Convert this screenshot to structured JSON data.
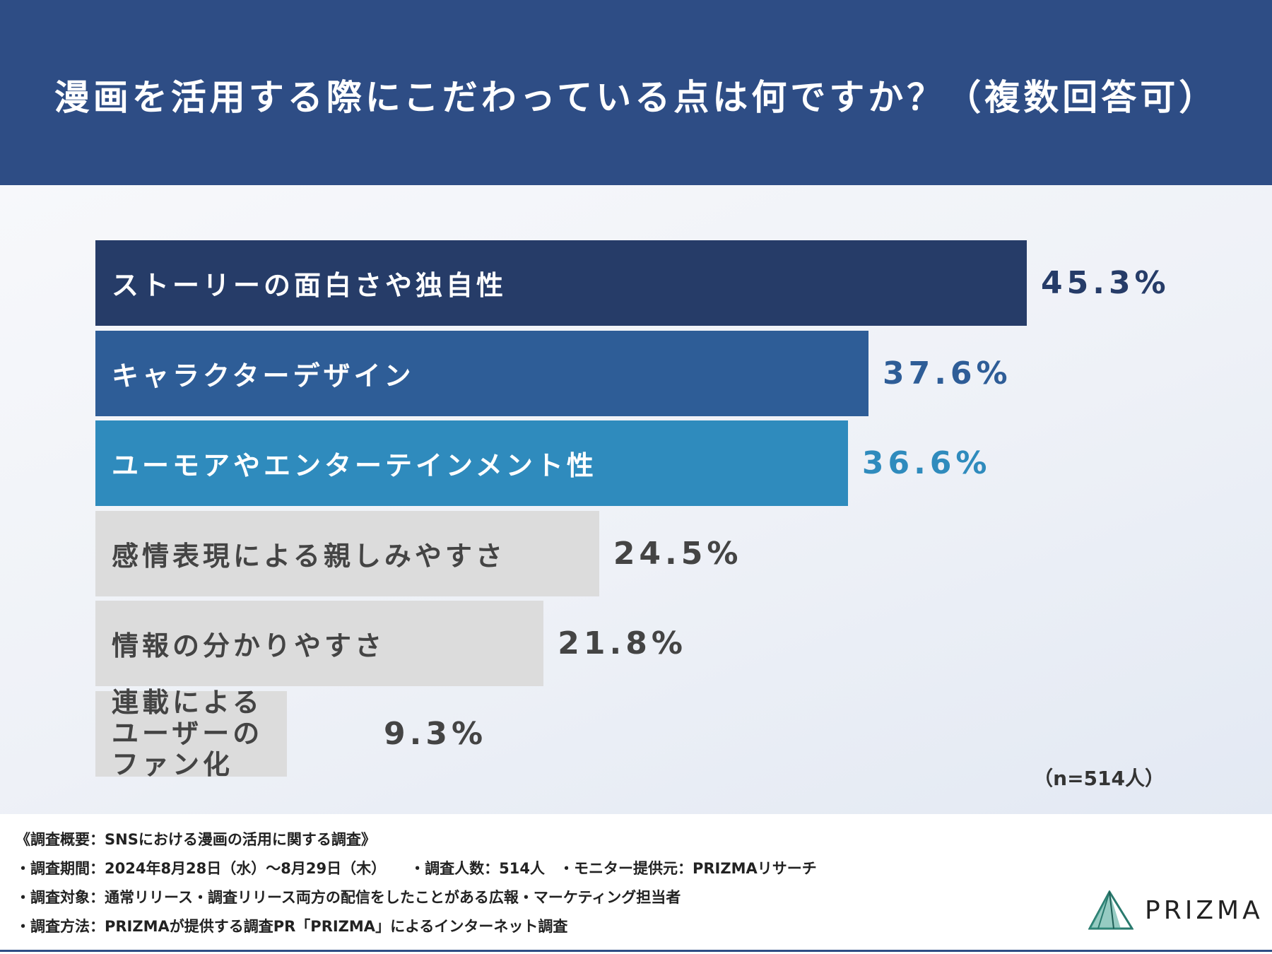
{
  "header": {
    "title": "漫画を活用する際にこだわっている点は何ですか？（複数回答可）"
  },
  "chart_data": {
    "type": "bar",
    "orientation": "horizontal",
    "categories": [
      "ストーリーの面白さや独自性",
      "キャラクターデザイン",
      "ユーモアやエンターテインメント性",
      "感情表現による親しみやすさ",
      "情報の分かりやすさ",
      "連載による\nユーザーのファン化"
    ],
    "values": [
      45.3,
      37.6,
      36.6,
      24.5,
      21.8,
      9.3
    ],
    "value_labels": [
      "45.3%",
      "37.6%",
      "36.6%",
      "24.5%",
      "21.8%",
      "9.3%"
    ],
    "bar_colors": [
      "#263c68",
      "#2e5d97",
      "#2f8bbd",
      "#dcdcdc",
      "#dcdcdc",
      "#dcdcdc"
    ],
    "label_colors": [
      "#ffffff",
      "#ffffff",
      "#ffffff",
      "#444444",
      "#444444",
      "#444444"
    ],
    "value_colors": [
      "#263c68",
      "#2e5d97",
      "#2f8bbd",
      "#444444",
      "#444444",
      "#444444"
    ],
    "xlim": [
      0,
      45.3
    ],
    "grid": false
  },
  "sample_note": "（n=514人）",
  "survey": {
    "heading": "《調査概要：SNSにおける漫画の活用に関する調査》",
    "period": "・調査期間：2024年8月28日（水）〜8月29日（木）",
    "count": "・調査人数：514人",
    "provider": "・モニター提供元：PRIZMAリサーチ",
    "target": "・調査対象：通常リリース・調査リリース両方の配信をしたことがある広報・マーケティング担当者",
    "method": "・調査方法：PRIZMAが提供する調査PR「PRIZMA」によるインターネット調査"
  },
  "brand": {
    "name": "PRIZMA",
    "logo_colors": [
      "#2a7a6e",
      "#3fa08f"
    ]
  }
}
